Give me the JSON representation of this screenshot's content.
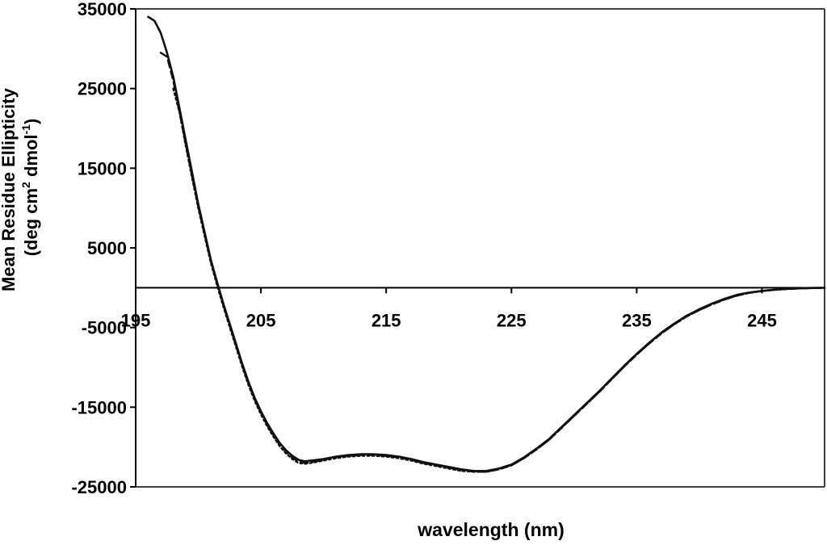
{
  "chart_data": {
    "type": "line",
    "title": "",
    "xlabel": "wavelength  (nm)",
    "ylabel_line1": "Mean Residue Ellipticity",
    "ylabel_line2_pre": "(deg cm",
    "ylabel_sup1": "2",
    "ylabel_line2_mid": " dmol",
    "ylabel_sup2": "-1",
    "ylabel_line2_post": ")",
    "xlim": [
      195,
      250
    ],
    "ylim": [
      -25000,
      35000
    ],
    "x_ticks": [
      195,
      205,
      215,
      225,
      235,
      245
    ],
    "x_tick_labels": [
      "195",
      "205",
      "215",
      "225",
      "235",
      "245"
    ],
    "y_ticks": [
      35000,
      25000,
      15000,
      5000,
      -5000,
      -15000,
      -25000
    ],
    "y_tick_labels": [
      "35000",
      "25000",
      "15000",
      "5000",
      "-5000",
      "-15000",
      "-25000"
    ],
    "grid": false,
    "legend": "none",
    "series": [
      {
        "style": "solid",
        "x": [
          196,
          196.5,
          197,
          197.5,
          198,
          198.5,
          199,
          199.5,
          200,
          200.5,
          201,
          201.5,
          202,
          202.5,
          203,
          203.5,
          204,
          204.5,
          205,
          205.5,
          206,
          206.5,
          207,
          207.5,
          208,
          208.5,
          209,
          210,
          211,
          212,
          213,
          214,
          215,
          216,
          217,
          218,
          219,
          220,
          221,
          222,
          223,
          224,
          225,
          226,
          227,
          228,
          229,
          230,
          231,
          232,
          233,
          234,
          235,
          236,
          237,
          238,
          239,
          240,
          241,
          242,
          243,
          244,
          245,
          246,
          247,
          248,
          249,
          250
        ],
        "values": [
          34000,
          33500,
          32000,
          29500,
          26500,
          22500,
          18500,
          14500,
          10500,
          7000,
          3500,
          700,
          -2000,
          -4500,
          -7000,
          -9500,
          -11800,
          -13800,
          -15500,
          -17000,
          -18300,
          -19500,
          -20400,
          -21100,
          -21600,
          -21800,
          -21700,
          -21500,
          -21200,
          -21000,
          -20900,
          -20900,
          -21000,
          -21200,
          -21500,
          -21900,
          -22200,
          -22500,
          -22800,
          -23000,
          -23000,
          -22700,
          -22200,
          -21300,
          -20200,
          -19000,
          -17500,
          -16000,
          -14500,
          -13000,
          -11400,
          -9800,
          -8300,
          -6900,
          -5600,
          -4500,
          -3500,
          -2700,
          -2000,
          -1400,
          -900,
          -600,
          -400,
          -250,
          -150,
          -80,
          -40,
          -20
        ]
      },
      {
        "style": "dashed",
        "x": [
          197,
          197.5,
          198,
          198.5,
          199,
          199.5,
          200,
          200.5,
          201,
          201.5,
          202,
          202.5,
          203,
          203.5,
          204,
          204.5,
          205,
          205.5,
          206,
          206.5,
          207,
          207.5,
          208,
          208.5,
          209,
          210,
          211,
          212,
          213,
          214,
          215,
          216,
          217,
          218,
          219,
          220,
          221,
          222,
          223,
          224,
          225,
          226,
          227,
          228,
          229,
          230,
          231,
          232,
          233,
          234,
          235,
          236,
          237,
          238,
          239,
          240,
          241,
          242,
          243,
          244,
          245,
          246,
          247,
          248,
          249,
          250
        ],
        "values": [
          29500,
          29000,
          26000,
          22000,
          18000,
          14000,
          10200,
          6700,
          3300,
          500,
          -2200,
          -4700,
          -7200,
          -9700,
          -12000,
          -14000,
          -15700,
          -17200,
          -18500,
          -19700,
          -20600,
          -21300,
          -21800,
          -22000,
          -21900,
          -21600,
          -21300,
          -21100,
          -21000,
          -21000,
          -21100,
          -21300,
          -21600,
          -22000,
          -22300,
          -22600,
          -22900,
          -23100,
          -23100,
          -22800,
          -22300,
          -21400,
          -20300,
          -19100,
          -17600,
          -16100,
          -14600,
          -13100,
          -11500,
          -9900,
          -8400,
          -7000,
          -5700,
          -4600,
          -3600,
          -2800,
          -2100,
          -1500,
          -1000,
          -650,
          -420,
          -260,
          -160,
          -90,
          -45,
          -20
        ]
      },
      {
        "style": "dotted",
        "x": [
          198,
          198.5,
          199,
          199.5,
          200,
          200.5,
          201,
          201.5,
          202,
          202.5,
          203,
          203.5,
          204,
          204.5,
          205,
          205.5,
          206,
          206.5,
          207,
          207.5,
          208,
          208.5,
          209,
          210,
          211,
          212,
          213,
          214,
          215,
          216,
          217,
          218,
          219,
          220,
          221,
          222,
          223,
          224,
          225,
          226,
          227,
          228,
          229,
          230,
          231,
          232,
          233,
          234,
          235,
          236,
          237,
          238,
          239,
          240,
          241,
          242,
          243,
          244,
          245,
          246,
          247,
          248,
          249,
          250
        ],
        "values": [
          25000,
          22000,
          17800,
          13800,
          10000,
          6500,
          3100,
          300,
          -2400,
          -4900,
          -7400,
          -9900,
          -12200,
          -14200,
          -15900,
          -17400,
          -18700,
          -19900,
          -20800,
          -21500,
          -22000,
          -22100,
          -22000,
          -21700,
          -21400,
          -21200,
          -21100,
          -21100,
          -21200,
          -21400,
          -21700,
          -22100,
          -22400,
          -22700,
          -23000,
          -23100,
          -23100,
          -22800,
          -22300,
          -21400,
          -20300,
          -19100,
          -17600,
          -16100,
          -14600,
          -13100,
          -11500,
          -9900,
          -8400,
          -7000,
          -5700,
          -4600,
          -3600,
          -2800,
          -2100,
          -1500,
          -1000,
          -650,
          -420,
          -260,
          -160,
          -90,
          -45,
          -20
        ]
      }
    ]
  }
}
